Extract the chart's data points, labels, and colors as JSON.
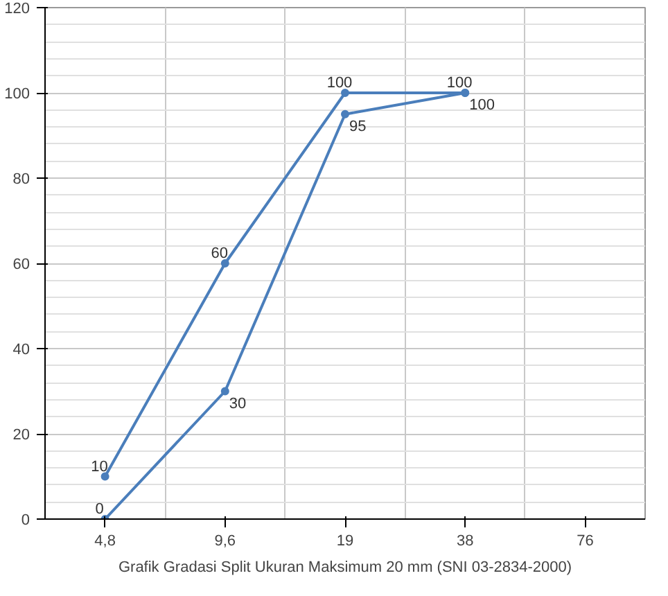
{
  "chart_data": {
    "type": "line",
    "title": "Grafik Gradasi Split Ukuran Maksimum 20 mm (SNI 03-2834-2000)",
    "categories": [
      "4,8",
      "9,6",
      "19",
      "38",
      "76"
    ],
    "series": [
      {
        "color": "#4a7ebb",
        "values": [
          10,
          60,
          100,
          100,
          null
        ]
      },
      {
        "color": "#4a7ebb",
        "values": [
          0,
          30,
          95,
          100,
          null
        ]
      }
    ],
    "ylim": [
      0,
      120
    ],
    "yticks": [
      0,
      20,
      40,
      60,
      80,
      100,
      120
    ],
    "grid": true,
    "marker": "circle",
    "line_style": "solid",
    "data_labels": true
  }
}
